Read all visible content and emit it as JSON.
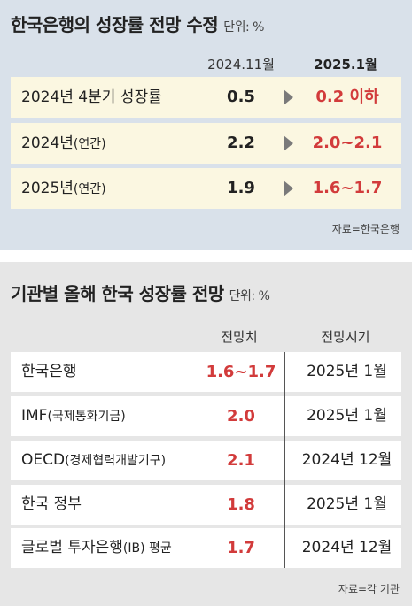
{
  "section1": {
    "title": "한국은행의 성장률 전망 수정",
    "unit": "단위: %",
    "col_prev": "2024.11월",
    "col_new": "2025.1월",
    "rows": [
      {
        "label": "2024년 4분기 성장률",
        "label_sub": "",
        "prev": "0.5",
        "new": "0.2 이하"
      },
      {
        "label": "2024년",
        "label_sub": "(연간)",
        "prev": "2.2",
        "new": "2.0~2.1"
      },
      {
        "label": "2025년",
        "label_sub": "(연간)",
        "prev": "1.9",
        "new": "1.6~1.7"
      }
    ],
    "source": "자료=한국은행"
  },
  "section2": {
    "title": "기관별 올해 한국 성장률 전망",
    "unit": "단위: %",
    "col_value": "전망치",
    "col_time": "전망시기",
    "rows": [
      {
        "label": "한국은행",
        "label_sub": "",
        "value": "1.6~1.7",
        "time": "2025년 1월"
      },
      {
        "label": "IMF",
        "label_sub": "(국제통화기금)",
        "value": "2.0",
        "time": "2025년 1월"
      },
      {
        "label": "OECD",
        "label_sub": "(경제협력개발기구)",
        "value": "2.1",
        "time": "2024년 12월"
      },
      {
        "label": "한국 정부",
        "label_sub": "",
        "value": "1.8",
        "time": "2025년 1월"
      },
      {
        "label": "글로벌 투자은행",
        "label_sub": "(IB) 평균",
        "value": "1.7",
        "time": "2024년 12월"
      }
    ],
    "source": "자료=각 기관"
  },
  "colors": {
    "section1_bg": "#d9e1ea",
    "section2_bg": "#e6e6e6",
    "row_highlight": "#fbf7e1",
    "accent_red": "#d23b3b",
    "arrow": "#7a7a7a"
  }
}
